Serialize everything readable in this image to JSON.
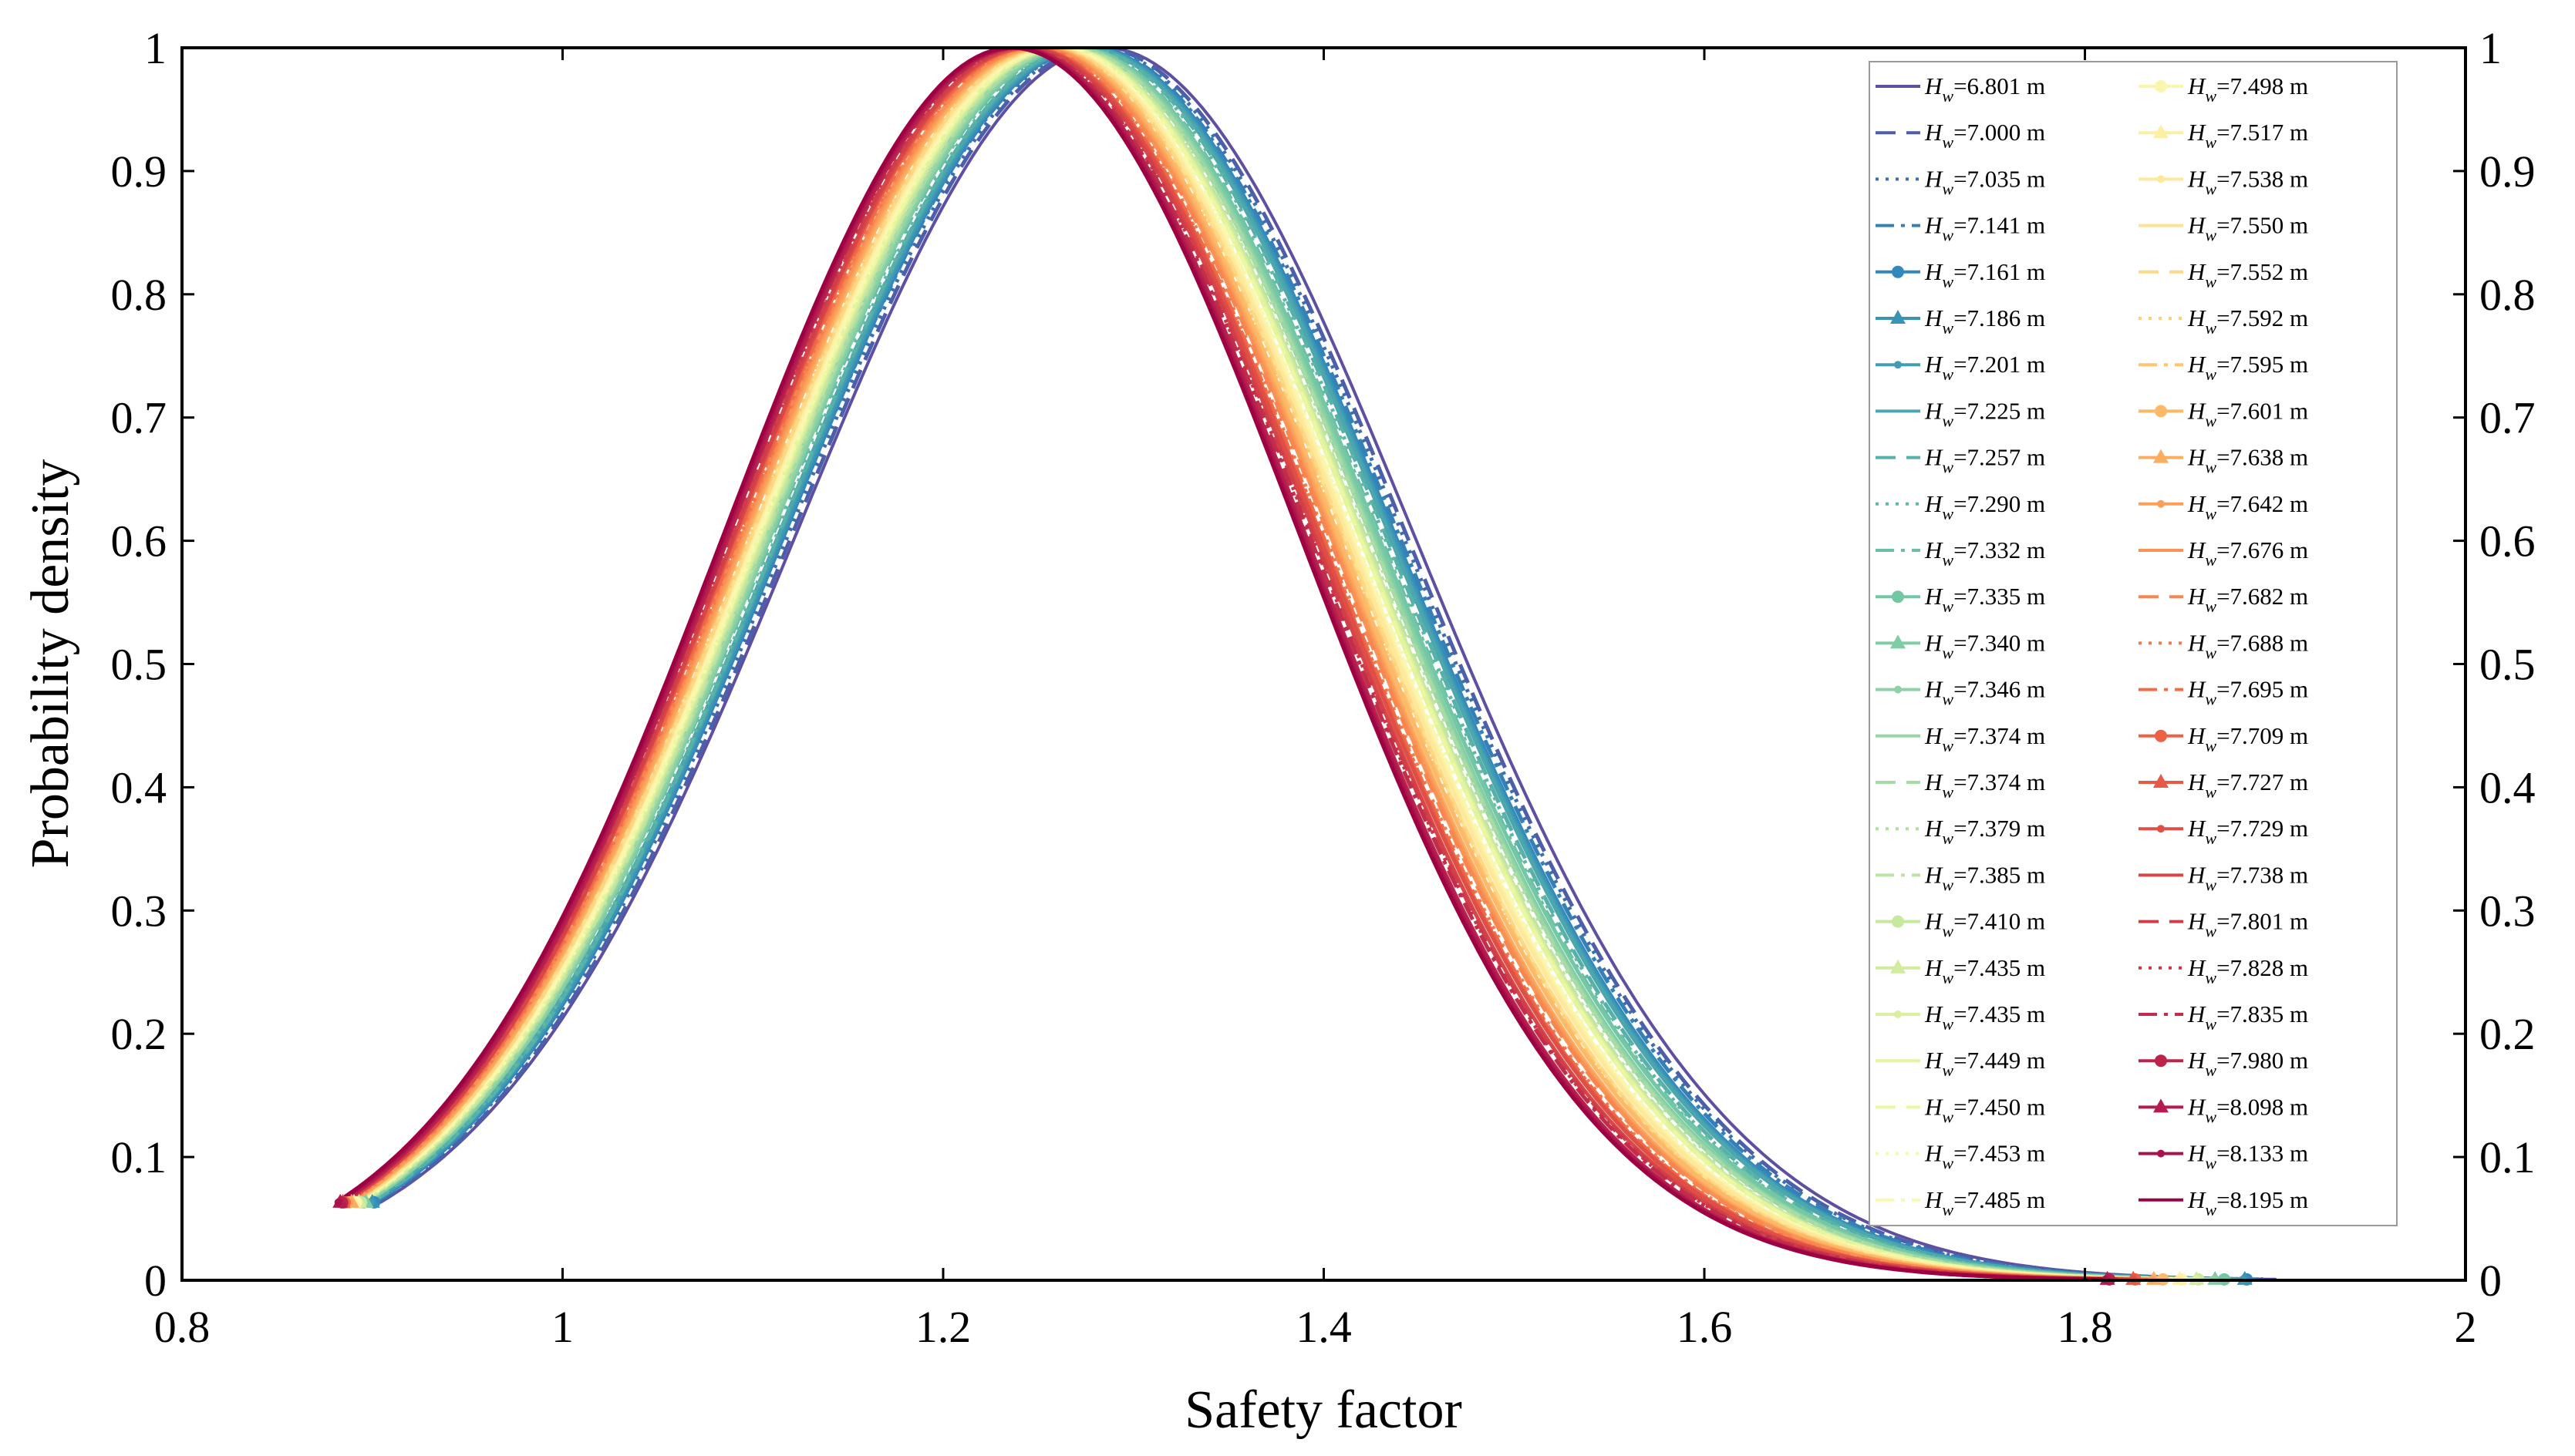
{
  "chart_data": {
    "type": "line",
    "title": "",
    "xlabel": "Safety factor",
    "ylabel": "Probability density",
    "xlim": [
      0.8,
      2
    ],
    "ylim": [
      0,
      1
    ],
    "xticks": [
      0.8,
      1,
      1.2,
      1.4,
      1.6,
      1.8,
      2
    ],
    "xtick_labels": [
      "0.8",
      "1",
      "1.2",
      "1.4",
      "1.6",
      "1.8",
      "2"
    ],
    "yticks": [
      0,
      0.1,
      0.2,
      0.3,
      0.4,
      0.5,
      0.6,
      0.7,
      0.8,
      0.9,
      1
    ],
    "ytick_labels": [
      "0",
      "0.1",
      "0.2",
      "0.3",
      "0.4",
      "0.5",
      "0.6",
      "0.7",
      "0.8",
      "0.9",
      "1"
    ],
    "right_axis_ticks": true,
    "grid": false,
    "legend_location": "top-right",
    "legend_columns": 2,
    "curve_shape": "normalized probability density, peak value 1, curves shift left as water level increases",
    "series": [
      {
        "name": "Hw=6.801 m",
        "label_main": "H",
        "label_sub": "w",
        "label_value": "=6.801 m",
        "peak_x": 1.285,
        "spread": 0.162,
        "color": "#5e4fa2",
        "style": "solid",
        "marker": "none"
      },
      {
        "name": "Hw=7.000 m",
        "label_main": "H",
        "label_sub": "w",
        "label_value": "=7.000 m",
        "peak_x": 1.282,
        "spread": 0.161,
        "color": "#4d5fa9",
        "style": "dashed",
        "marker": "none"
      },
      {
        "name": "Hw=7.035 m",
        "label_main": "H",
        "label_sub": "w",
        "label_value": "=7.035 m",
        "peak_x": 1.28,
        "spread": 0.161,
        "color": "#3d6fb0",
        "style": "dotted",
        "marker": "none"
      },
      {
        "name": "Hw=7.141 m",
        "label_main": "H",
        "label_sub": "w",
        "label_value": "=7.141 m",
        "peak_x": 1.278,
        "spread": 0.161,
        "color": "#3580b5",
        "style": "dashdot",
        "marker": "none"
      },
      {
        "name": "Hw=7.161 m",
        "label_main": "H",
        "label_sub": "w",
        "label_value": "=7.161 m",
        "peak_x": 1.277,
        "spread": 0.16,
        "color": "#3288bd",
        "style": "solid",
        "marker": "circle"
      },
      {
        "name": "Hw=7.186 m",
        "label_main": "H",
        "label_sub": "w",
        "label_value": "=7.186 m",
        "peak_x": 1.276,
        "spread": 0.16,
        "color": "#3993b7",
        "style": "solid",
        "marker": "triangle"
      },
      {
        "name": "Hw=7.201 m",
        "label_main": "H",
        "label_sub": "w",
        "label_value": "=7.201 m",
        "peak_x": 1.275,
        "spread": 0.16,
        "color": "#429db1",
        "style": "solid",
        "marker": "dot"
      },
      {
        "name": "Hw=7.225 m",
        "label_main": "H",
        "label_sub": "w",
        "label_value": "=7.225 m",
        "peak_x": 1.274,
        "spread": 0.16,
        "color": "#4ca6ad",
        "style": "solid",
        "marker": "none"
      },
      {
        "name": "Hw=7.257 m",
        "label_main": "H",
        "label_sub": "w",
        "label_value": "=7.257 m",
        "peak_x": 1.273,
        "spread": 0.159,
        "color": "#55b0a9",
        "style": "dashed",
        "marker": "none"
      },
      {
        "name": "Hw=7.290 m",
        "label_main": "H",
        "label_sub": "w",
        "label_value": "=7.290 m",
        "peak_x": 1.272,
        "spread": 0.159,
        "color": "#5fb8a6",
        "style": "dotted",
        "marker": "none"
      },
      {
        "name": "Hw=7.332 m",
        "label_main": "H",
        "label_sub": "w",
        "label_value": "=7.332 m",
        "peak_x": 1.27,
        "spread": 0.159,
        "color": "#69c0a4",
        "style": "dashdot",
        "marker": "none"
      },
      {
        "name": "Hw=7.335 m",
        "label_main": "H",
        "label_sub": "w",
        "label_value": "=7.335 m",
        "peak_x": 1.269,
        "spread": 0.159,
        "color": "#74c7a5",
        "style": "solid",
        "marker": "circle"
      },
      {
        "name": "Hw=7.340 m",
        "label_main": "H",
        "label_sub": "w",
        "label_value": "=7.340 m",
        "peak_x": 1.268,
        "spread": 0.158,
        "color": "#80cca4",
        "style": "solid",
        "marker": "triangle"
      },
      {
        "name": "Hw=7.346 m",
        "label_main": "H",
        "label_sub": "w",
        "label_value": "=7.346 m",
        "peak_x": 1.267,
        "spread": 0.158,
        "color": "#8dd2a4",
        "style": "solid",
        "marker": "dot"
      },
      {
        "name": "Hw=7.374 m",
        "label_main": "H",
        "label_sub": "w",
        "label_value": "=7.374 m",
        "peak_x": 1.266,
        "spread": 0.158,
        "color": "#99d6a4",
        "style": "solid",
        "marker": "none"
      },
      {
        "name": "Hw=7.374 m",
        "label_main": "H",
        "label_sub": "w",
        "label_value": "=7.374 m",
        "peak_x": 1.266,
        "spread": 0.158,
        "color": "#a5dba4",
        "style": "dashed",
        "marker": "none"
      },
      {
        "name": "Hw=7.379 m",
        "label_main": "H",
        "label_sub": "w",
        "label_value": "=7.379 m",
        "peak_x": 1.265,
        "spread": 0.158,
        "color": "#b0dfa2",
        "style": "dotted",
        "marker": "none"
      },
      {
        "name": "Hw=7.385 m",
        "label_main": "H",
        "label_sub": "w",
        "label_value": "=7.385 m",
        "peak_x": 1.264,
        "spread": 0.157,
        "color": "#bce4a0",
        "style": "dashdot",
        "marker": "none"
      },
      {
        "name": "Hw=7.410 m",
        "label_main": "H",
        "label_sub": "w",
        "label_value": "=7.410 m",
        "peak_x": 1.263,
        "spread": 0.157,
        "color": "#c7e89f",
        "style": "solid",
        "marker": "circle"
      },
      {
        "name": "Hw=7.435 m",
        "label_main": "H",
        "label_sub": "w",
        "label_value": "=7.435 m",
        "peak_x": 1.262,
        "spread": 0.157,
        "color": "#d1ec9e",
        "style": "solid",
        "marker": "triangle"
      },
      {
        "name": "Hw=7.435 m",
        "label_main": "H",
        "label_sub": "w",
        "label_value": "=7.435 m",
        "peak_x": 1.262,
        "spread": 0.157,
        "color": "#dbf09e",
        "style": "solid",
        "marker": "dot"
      },
      {
        "name": "Hw=7.449 m",
        "label_main": "H",
        "label_sub": "w",
        "label_value": "=7.449 m",
        "peak_x": 1.261,
        "spread": 0.157,
        "color": "#e4f49d",
        "style": "solid",
        "marker": "none"
      },
      {
        "name": "Hw=7.450 m",
        "label_main": "H",
        "label_sub": "w",
        "label_value": "=7.450 m",
        "peak_x": 1.261,
        "spread": 0.157,
        "color": "#ecf7a1",
        "style": "dashed",
        "marker": "none"
      },
      {
        "name": "Hw=7.453 m",
        "label_main": "H",
        "label_sub": "w",
        "label_value": "=7.453 m",
        "peak_x": 1.26,
        "spread": 0.156,
        "color": "#f3faa8",
        "style": "dotted",
        "marker": "none"
      },
      {
        "name": "Hw=7.485 m",
        "label_main": "H",
        "label_sub": "w",
        "label_value": "=7.485 m",
        "peak_x": 1.259,
        "spread": 0.156,
        "color": "#f7f9b0",
        "style": "dashdot",
        "marker": "none"
      },
      {
        "name": "Hw=7.498 m",
        "label_main": "H",
        "label_sub": "w",
        "label_value": "=7.498 m",
        "peak_x": 1.258,
        "spread": 0.156,
        "color": "#fbf6ae",
        "style": "solid",
        "marker": "circle"
      },
      {
        "name": "Hw=7.517 m",
        "label_main": "H",
        "label_sub": "w",
        "label_value": "=7.517 m",
        "peak_x": 1.257,
        "spread": 0.156,
        "color": "#fdf0a5",
        "style": "solid",
        "marker": "triangle"
      },
      {
        "name": "Hw=7.538 m",
        "label_main": "H",
        "label_sub": "w",
        "label_value": "=7.538 m",
        "peak_x": 1.256,
        "spread": 0.156,
        "color": "#fee99b",
        "style": "solid",
        "marker": "dot"
      },
      {
        "name": "Hw=7.550 m",
        "label_main": "H",
        "label_sub": "w",
        "label_value": "=7.550 m",
        "peak_x": 1.255,
        "spread": 0.155,
        "color": "#fee290",
        "style": "solid",
        "marker": "none"
      },
      {
        "name": "Hw=7.552 m",
        "label_main": "H",
        "label_sub": "w",
        "label_value": "=7.552 m",
        "peak_x": 1.255,
        "spread": 0.155,
        "color": "#fed985",
        "style": "dashed",
        "marker": "none"
      },
      {
        "name": "Hw=7.592 m",
        "label_main": "H",
        "label_sub": "w",
        "label_value": "=7.592 m",
        "peak_x": 1.254,
        "spread": 0.155,
        "color": "#fdcf7a",
        "style": "dotted",
        "marker": "none"
      },
      {
        "name": "Hw=7.595 m",
        "label_main": "H",
        "label_sub": "w",
        "label_value": "=7.595 m",
        "peak_x": 1.253,
        "spread": 0.155,
        "color": "#fdc471",
        "style": "dashdot",
        "marker": "none"
      },
      {
        "name": "Hw=7.601 m",
        "label_main": "H",
        "label_sub": "w",
        "label_value": "=7.601 m",
        "peak_x": 1.252,
        "spread": 0.155,
        "color": "#fdb968",
        "style": "solid",
        "marker": "circle"
      },
      {
        "name": "Hw=7.638 m",
        "label_main": "H",
        "label_sub": "w",
        "label_value": "=7.638 m",
        "peak_x": 1.251,
        "spread": 0.154,
        "color": "#fcad60",
        "style": "solid",
        "marker": "triangle"
      },
      {
        "name": "Hw=7.642 m",
        "label_main": "H",
        "label_sub": "w",
        "label_value": "=7.642 m",
        "peak_x": 1.25,
        "spread": 0.154,
        "color": "#fba05b",
        "style": "solid",
        "marker": "dot"
      },
      {
        "name": "Hw=7.676 m",
        "label_main": "H",
        "label_sub": "w",
        "label_value": "=7.676 m",
        "peak_x": 1.249,
        "spread": 0.154,
        "color": "#f99355",
        "style": "solid",
        "marker": "none"
      },
      {
        "name": "Hw=7.682 m",
        "label_main": "H",
        "label_sub": "w",
        "label_value": "=7.682 m",
        "peak_x": 1.248,
        "spread": 0.154,
        "color": "#f7864f",
        "style": "dashed",
        "marker": "none"
      },
      {
        "name": "Hw=7.688 m",
        "label_main": "H",
        "label_sub": "w",
        "label_value": "=7.688 m",
        "peak_x": 1.247,
        "spread": 0.153,
        "color": "#f47a4b",
        "style": "dotted",
        "marker": "none"
      },
      {
        "name": "Hw=7.695 m",
        "label_main": "H",
        "label_sub": "w",
        "label_value": "=7.695 m",
        "peak_x": 1.246,
        "spread": 0.153,
        "color": "#f06e47",
        "style": "dashdot",
        "marker": "none"
      },
      {
        "name": "Hw=7.709 m",
        "label_main": "H",
        "label_sub": "w",
        "label_value": "=7.709 m",
        "peak_x": 1.245,
        "spread": 0.153,
        "color": "#ec6245",
        "style": "solid",
        "marker": "circle"
      },
      {
        "name": "Hw=7.727 m",
        "label_main": "H",
        "label_sub": "w",
        "label_value": "=7.727 m",
        "peak_x": 1.244,
        "spread": 0.153,
        "color": "#e75845",
        "style": "solid",
        "marker": "triangle"
      },
      {
        "name": "Hw=7.729 m",
        "label_main": "H",
        "label_sub": "w",
        "label_value": "=7.729 m",
        "peak_x": 1.244,
        "spread": 0.153,
        "color": "#e04f46",
        "style": "solid",
        "marker": "dot"
      },
      {
        "name": "Hw=7.738 m",
        "label_main": "H",
        "label_sub": "w",
        "label_value": "=7.738 m",
        "peak_x": 1.243,
        "spread": 0.152,
        "color": "#d84647",
        "style": "solid",
        "marker": "none"
      },
      {
        "name": "Hw=7.801 m",
        "label_main": "H",
        "label_sub": "w",
        "label_value": "=7.801 m",
        "peak_x": 1.242,
        "spread": 0.152,
        "color": "#d13e48",
        "style": "dashed",
        "marker": "none"
      },
      {
        "name": "Hw=7.828 m",
        "label_main": "H",
        "label_sub": "w",
        "label_value": "=7.828 m",
        "peak_x": 1.241,
        "spread": 0.152,
        "color": "#ca364a",
        "style": "dotted",
        "marker": "none"
      },
      {
        "name": "Hw=7.835 m",
        "label_main": "H",
        "label_sub": "w",
        "label_value": "=7.835 m",
        "peak_x": 1.24,
        "spread": 0.152,
        "color": "#c22d4b",
        "style": "dashdot",
        "marker": "none"
      },
      {
        "name": "Hw=7.980 m",
        "label_main": "H",
        "label_sub": "w",
        "label_value": "=7.980 m",
        "peak_x": 1.239,
        "spread": 0.151,
        "color": "#bb254c",
        "style": "solid",
        "marker": "circle"
      },
      {
        "name": "Hw=8.098 m",
        "label_main": "H",
        "label_sub": "w",
        "label_value": "=8.098 m",
        "peak_x": 1.238,
        "spread": 0.151,
        "color": "#b31c4c",
        "style": "solid",
        "marker": "triangle"
      },
      {
        "name": "Hw=8.133 m",
        "label_main": "H",
        "label_sub": "w",
        "label_value": "=8.133 m",
        "peak_x": 1.237,
        "spread": 0.151,
        "color": "#aa124d",
        "style": "solid",
        "marker": "dot"
      },
      {
        "name": "Hw=8.195 m",
        "label_main": "H",
        "label_sub": "w",
        "label_value": "=8.195 m",
        "peak_x": 1.236,
        "spread": 0.151,
        "color": "#9e0142",
        "style": "solid",
        "marker": "none"
      }
    ]
  }
}
